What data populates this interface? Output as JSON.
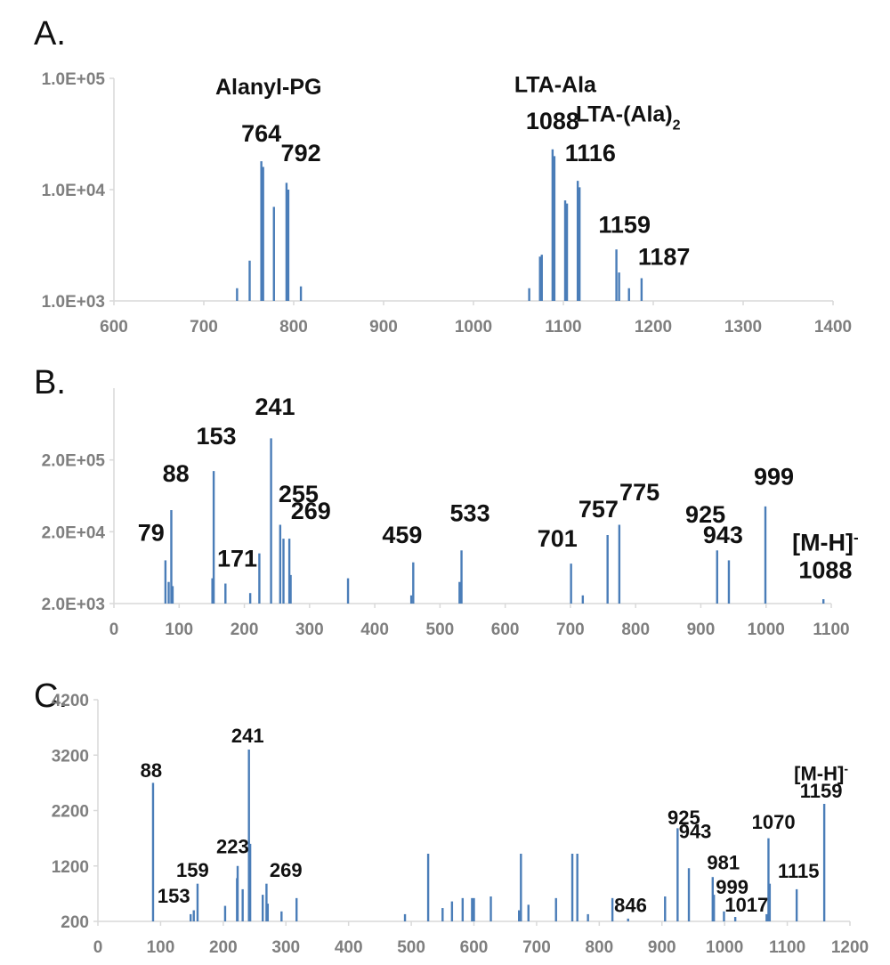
{
  "chart_data": [
    {
      "panel": "A.",
      "type": "bar",
      "yscale": "log",
      "xlim": [
        600,
        1400
      ],
      "ylim": [
        1000,
        100000
      ],
      "xticks": [
        "600",
        "700",
        "800",
        "900",
        "1000",
        "1100",
        "1200",
        "1300",
        "1400"
      ],
      "yticks": [
        "1.0E+03",
        "1.0E+04",
        "1.0E+05"
      ],
      "peaks": [
        {
          "x": 737,
          "y": 1300
        },
        {
          "x": 751,
          "y": 2300
        },
        {
          "x": 764,
          "y": 18000
        },
        {
          "x": 766,
          "y": 16000
        },
        {
          "x": 778,
          "y": 7000
        },
        {
          "x": 792,
          "y": 11500
        },
        {
          "x": 794,
          "y": 10000
        },
        {
          "x": 808,
          "y": 1350
        },
        {
          "x": 1062,
          "y": 1300
        },
        {
          "x": 1074,
          "y": 2500
        },
        {
          "x": 1076,
          "y": 2600
        },
        {
          "x": 1088,
          "y": 23000
        },
        {
          "x": 1090,
          "y": 20000
        },
        {
          "x": 1102,
          "y": 8000
        },
        {
          "x": 1104,
          "y": 7500
        },
        {
          "x": 1116,
          "y": 12000
        },
        {
          "x": 1118,
          "y": 10500
        },
        {
          "x": 1159,
          "y": 2900
        },
        {
          "x": 1162,
          "y": 1800
        },
        {
          "x": 1173,
          "y": 1300
        },
        {
          "x": 1187,
          "y": 1600
        }
      ],
      "labels": [
        {
          "text": "Alanyl-PG",
          "x": 772,
          "y": 72000,
          "size": 25
        },
        {
          "text": "LTA-Ala",
          "x": 1091,
          "y": 75000,
          "size": 25
        },
        {
          "text": "LTA-(Ala)",
          "sub": "2",
          "x": 1172,
          "y": 41000,
          "size": 25
        },
        {
          "text": "764",
          "x": 764,
          "y": 27000,
          "size": 27
        },
        {
          "text": "792",
          "x": 808,
          "y": 18000,
          "size": 27
        },
        {
          "text": "1088",
          "x": 1088,
          "y": 35000,
          "size": 27
        },
        {
          "text": "1116",
          "x": 1130,
          "y": 18000,
          "size": 27
        },
        {
          "text": "1159",
          "x": 1168,
          "y": 4100,
          "size": 27
        },
        {
          "text": "1187",
          "x": 1212,
          "y": 2100,
          "size": 27
        }
      ]
    },
    {
      "panel": "B.",
      "type": "bar",
      "yscale": "log",
      "xlim": [
        0,
        1100
      ],
      "ylim": [
        2000,
        2000000
      ],
      "xticks": [
        "0",
        "100",
        "200",
        "300",
        "400",
        "500",
        "600",
        "700",
        "800",
        "900",
        "1000",
        "1100"
      ],
      "yticks": [
        "2.0E+03",
        "2.0E+04",
        "2.0E+05"
      ],
      "peaks": [
        {
          "x": 79,
          "y": 8000
        },
        {
          "x": 84,
          "y": 4000
        },
        {
          "x": 88,
          "y": 40000
        },
        {
          "x": 90,
          "y": 3500
        },
        {
          "x": 151,
          "y": 4500
        },
        {
          "x": 153,
          "y": 140000
        },
        {
          "x": 171,
          "y": 3800
        },
        {
          "x": 209,
          "y": 2800
        },
        {
          "x": 223,
          "y": 10000
        },
        {
          "x": 241,
          "y": 400000
        },
        {
          "x": 255,
          "y": 25000
        },
        {
          "x": 260,
          "y": 16000
        },
        {
          "x": 269,
          "y": 16000
        },
        {
          "x": 271,
          "y": 5000
        },
        {
          "x": 359,
          "y": 4500
        },
        {
          "x": 456,
          "y": 2600
        },
        {
          "x": 459,
          "y": 7500
        },
        {
          "x": 530,
          "y": 4000
        },
        {
          "x": 533,
          "y": 11000
        },
        {
          "x": 701,
          "y": 7200
        },
        {
          "x": 719,
          "y": 2600
        },
        {
          "x": 757,
          "y": 18000
        },
        {
          "x": 775,
          "y": 25000
        },
        {
          "x": 925,
          "y": 11000
        },
        {
          "x": 943,
          "y": 8000
        },
        {
          "x": 999,
          "y": 45000
        },
        {
          "x": 1088,
          "y": 2300
        }
      ],
      "labels": [
        {
          "text": "79",
          "x": 57,
          "y": 15000,
          "size": 27
        },
        {
          "text": "88",
          "x": 95,
          "y": 100000,
          "size": 27
        },
        {
          "text": "153",
          "x": 157,
          "y": 330000,
          "size": 27
        },
        {
          "text": "241",
          "x": 247,
          "y": 850000,
          "size": 27
        },
        {
          "text": "255",
          "x": 283,
          "y": 52000,
          "size": 27
        },
        {
          "text": "269",
          "x": 302,
          "y": 30000,
          "size": 27
        },
        {
          "text": "171",
          "x": 189,
          "y": 6500,
          "size": 27
        },
        {
          "text": "459",
          "x": 442,
          "y": 14000,
          "size": 27
        },
        {
          "text": "533",
          "x": 546,
          "y": 28000,
          "size": 27
        },
        {
          "text": "701",
          "x": 680,
          "y": 12500,
          "size": 27
        },
        {
          "text": "757",
          "x": 743,
          "y": 32000,
          "size": 27
        },
        {
          "text": "775",
          "x": 806,
          "y": 55000,
          "size": 27
        },
        {
          "text": "925",
          "x": 907,
          "y": 27000,
          "size": 27
        },
        {
          "text": "943",
          "x": 934,
          "y": 14000,
          "size": 27
        },
        {
          "text": "999",
          "x": 1012,
          "y": 90000,
          "size": 27
        },
        {
          "text": "[M-H]",
          "sup": "-",
          "x": 1091,
          "y": 11000,
          "size": 27
        },
        {
          "text": "1088",
          "x": 1091,
          "y": 4500,
          "size": 27
        }
      ]
    },
    {
      "panel": "C.",
      "type": "bar",
      "yscale": "linear",
      "xlim": [
        0,
        1200
      ],
      "ylim": [
        200,
        4200
      ],
      "xticks": [
        "0",
        "100",
        "200",
        "300",
        "400",
        "500",
        "600",
        "700",
        "800",
        "900",
        "1000",
        "1100",
        "1200"
      ],
      "yticks": [
        "200",
        "1200",
        "2200",
        "3200",
        "4200"
      ],
      "peaks": [
        {
          "x": 88,
          "y": 2700
        },
        {
          "x": 148,
          "y": 330
        },
        {
          "x": 153,
          "y": 400
        },
        {
          "x": 159,
          "y": 880
        },
        {
          "x": 203,
          "y": 480
        },
        {
          "x": 222,
          "y": 980
        },
        {
          "x": 223,
          "y": 1200
        },
        {
          "x": 231,
          "y": 780
        },
        {
          "x": 241,
          "y": 3300
        },
        {
          "x": 243,
          "y": 1600
        },
        {
          "x": 263,
          "y": 680
        },
        {
          "x": 269,
          "y": 880
        },
        {
          "x": 271,
          "y": 520
        },
        {
          "x": 293,
          "y": 380
        },
        {
          "x": 317,
          "y": 620
        },
        {
          "x": 490,
          "y": 330
        },
        {
          "x": 527,
          "y": 1420
        },
        {
          "x": 550,
          "y": 440
        },
        {
          "x": 565,
          "y": 560
        },
        {
          "x": 582,
          "y": 620
        },
        {
          "x": 597,
          "y": 620
        },
        {
          "x": 600,
          "y": 620
        },
        {
          "x": 627,
          "y": 650
        },
        {
          "x": 672,
          "y": 400
        },
        {
          "x": 675,
          "y": 1420
        },
        {
          "x": 687,
          "y": 500
        },
        {
          "x": 731,
          "y": 620
        },
        {
          "x": 757,
          "y": 1420
        },
        {
          "x": 765,
          "y": 1420
        },
        {
          "x": 782,
          "y": 330
        },
        {
          "x": 821,
          "y": 620
        },
        {
          "x": 846,
          "y": 250
        },
        {
          "x": 905,
          "y": 650
        },
        {
          "x": 925,
          "y": 1880
        },
        {
          "x": 943,
          "y": 1160
        },
        {
          "x": 981,
          "y": 1000
        },
        {
          "x": 983,
          "y": 680
        },
        {
          "x": 999,
          "y": 380
        },
        {
          "x": 1017,
          "y": 280
        },
        {
          "x": 1067,
          "y": 330
        },
        {
          "x": 1070,
          "y": 1700
        },
        {
          "x": 1072,
          "y": 880
        },
        {
          "x": 1115,
          "y": 780
        },
        {
          "x": 1159,
          "y": 2320
        }
      ],
      "labels": [
        {
          "text": "88",
          "x": 85,
          "y": 2800,
          "size": 22
        },
        {
          "text": "153",
          "x": 121,
          "y": 540,
          "size": 22
        },
        {
          "text": "159",
          "x": 151,
          "y": 1000,
          "size": 22
        },
        {
          "text": "223",
          "x": 215,
          "y": 1430,
          "size": 22
        },
        {
          "text": "241",
          "x": 239,
          "y": 3430,
          "size": 22
        },
        {
          "text": "269",
          "x": 300,
          "y": 1000,
          "size": 22
        },
        {
          "text": "846",
          "x": 850,
          "y": 370,
          "size": 22
        },
        {
          "text": "925",
          "x": 935,
          "y": 1950,
          "size": 22
        },
        {
          "text": "943",
          "x": 953,
          "y": 1700,
          "size": 22
        },
        {
          "text": "981",
          "x": 998,
          "y": 1140,
          "size": 22
        },
        {
          "text": "999",
          "x": 1012,
          "y": 700,
          "size": 22
        },
        {
          "text": "1017",
          "x": 1035,
          "y": 380,
          "size": 22
        },
        {
          "text": "1070",
          "x": 1078,
          "y": 1870,
          "size": 22
        },
        {
          "text": "1115",
          "x": 1118,
          "y": 990,
          "size": 22
        },
        {
          "text": "[M-H]",
          "sup": "-",
          "x": 1154,
          "y": 2750,
          "size": 22
        },
        {
          "text": "1159",
          "x": 1154,
          "y": 2430,
          "size": 22
        }
      ]
    }
  ],
  "colors": {
    "peak": "#4a7db8",
    "axis": "#d9d9d9",
    "tick_text": "#7f7f7f",
    "label_text": "#111111"
  }
}
